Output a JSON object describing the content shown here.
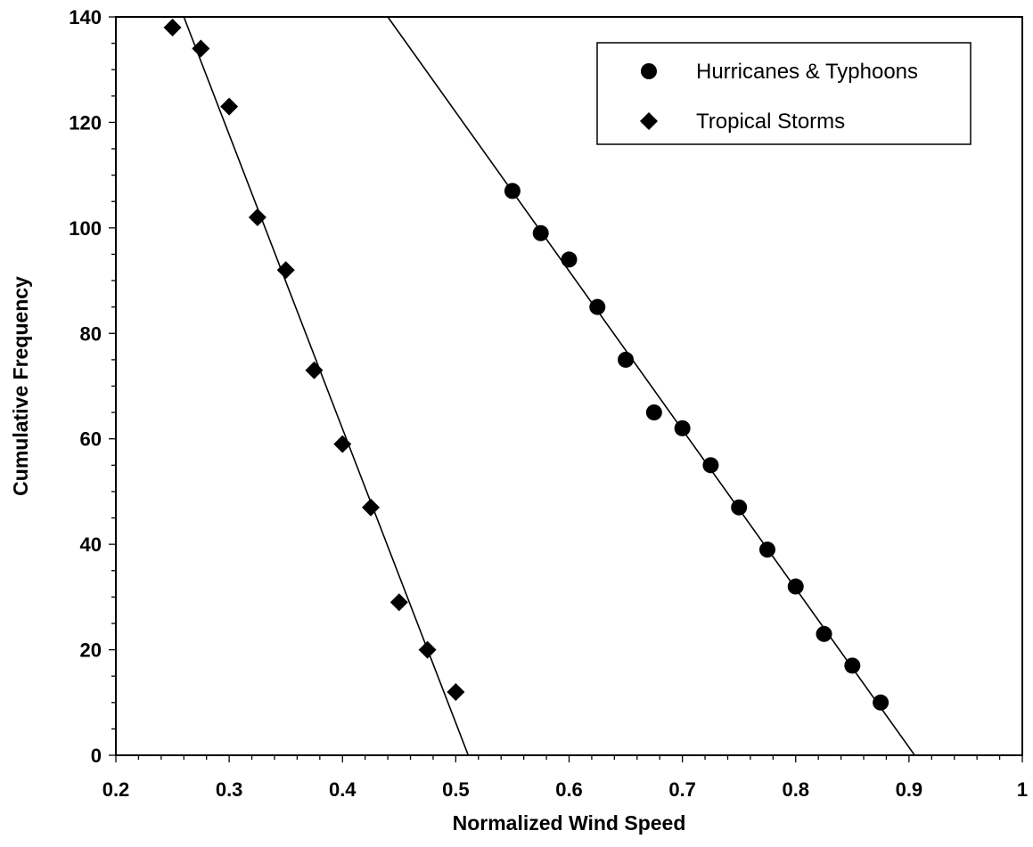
{
  "chart_data": {
    "type": "scatter",
    "title": "",
    "xlabel": "Normalized Wind Speed",
    "ylabel": "Cumulative Frequency",
    "xlim": [
      0.2,
      1.0
    ],
    "ylim": [
      0,
      140
    ],
    "x_ticks": [
      "0.2",
      "0.3",
      "0.4",
      "0.5",
      "0.6",
      "0.7",
      "0.8",
      "0.9",
      "1"
    ],
    "y_ticks": [
      "0",
      "20",
      "40",
      "60",
      "80",
      "100",
      "120",
      "140"
    ],
    "x_tick_values": [
      0.2,
      0.3,
      0.4,
      0.5,
      0.6,
      0.7,
      0.8,
      0.9,
      1.0
    ],
    "y_tick_values": [
      0,
      20,
      40,
      60,
      80,
      100,
      120,
      140
    ],
    "grid": false,
    "legend_position": "top-right",
    "series": [
      {
        "name": "Hurricanes & Typhoons",
        "marker": "circle",
        "color": "#000000",
        "points": [
          [
            0.55,
            107
          ],
          [
            0.575,
            99
          ],
          [
            0.6,
            94
          ],
          [
            0.625,
            85
          ],
          [
            0.65,
            75
          ],
          [
            0.675,
            65
          ],
          [
            0.7,
            62
          ],
          [
            0.725,
            55
          ],
          [
            0.75,
            47
          ],
          [
            0.775,
            39
          ],
          [
            0.8,
            32
          ],
          [
            0.825,
            23
          ],
          [
            0.85,
            17
          ],
          [
            0.875,
            10
          ]
        ],
        "fit_line": [
          [
            0.44,
            140
          ],
          [
            0.905,
            0
          ]
        ]
      },
      {
        "name": "Tropical Storms",
        "marker": "diamond",
        "color": "#000000",
        "points": [
          [
            0.25,
            138
          ],
          [
            0.275,
            134
          ],
          [
            0.3,
            123
          ],
          [
            0.325,
            102
          ],
          [
            0.35,
            92
          ],
          [
            0.375,
            73
          ],
          [
            0.4,
            59
          ],
          [
            0.425,
            47
          ],
          [
            0.45,
            29
          ],
          [
            0.475,
            20
          ],
          [
            0.5,
            12
          ]
        ],
        "fit_line": [
          [
            0.26,
            140
          ],
          [
            0.511,
            0
          ]
        ]
      }
    ]
  }
}
